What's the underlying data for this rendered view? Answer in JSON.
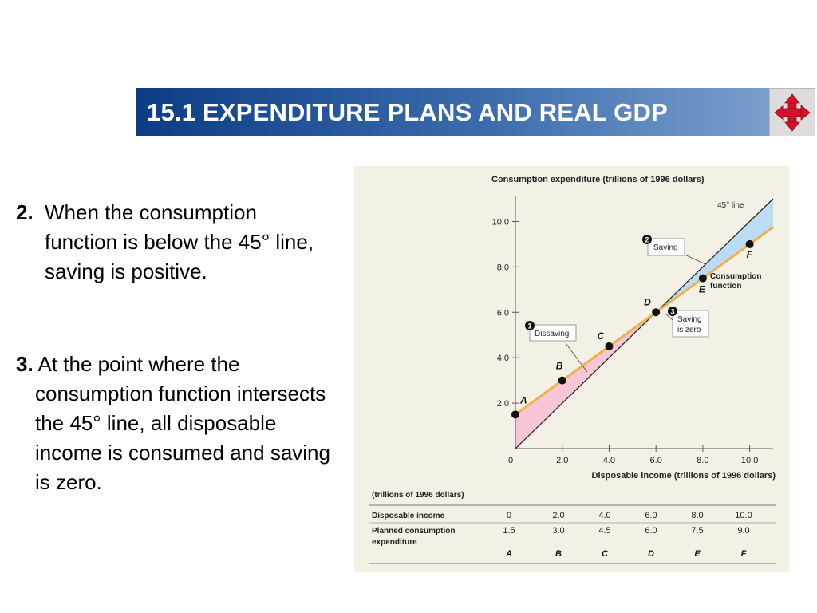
{
  "header": {
    "title": "15.1 EXPENDITURE PLANS AND REAL GDP",
    "nav_icon": "four-way-arrows-icon",
    "accent_color": "#0c3c84"
  },
  "bullets": [
    {
      "number": "2.",
      "text": "When the consumption function is below the 45° line, saving is positive."
    },
    {
      "number": "3.",
      "first_line": "At the point where the",
      "rest": "consumption function intersects the 45° line, all disposable income is consumed and saving is zero."
    }
  ],
  "chart_data": {
    "type": "line",
    "ylabel": "Consumption expenditure (trillions of 1996 dollars)",
    "xlabel": "Disposable income (trillions of 1996 dollars)",
    "xlim": [
      0,
      11.0
    ],
    "ylim": [
      0,
      11.0
    ],
    "x_ticks": [
      "2.0",
      "4.0",
      "6.0",
      "8.0",
      "10.0"
    ],
    "y_ticks": [
      "2.0",
      "4.0",
      "6.0",
      "8.0",
      "10.0"
    ],
    "origin_label": "0",
    "grid": false,
    "series": [
      {
        "name": "45° line",
        "color": "#1a1a1a",
        "x": [
          0,
          11.0
        ],
        "y": [
          0,
          11.0
        ]
      },
      {
        "name": "Consumption function",
        "color": "#f0b050",
        "x": [
          0,
          11.0
        ],
        "y": [
          1.5,
          9.75
        ]
      }
    ],
    "points": [
      {
        "label": "A",
        "x": 0,
        "y": 1.5
      },
      {
        "label": "B",
        "x": 2.0,
        "y": 3.0
      },
      {
        "label": "C",
        "x": 4.0,
        "y": 4.5
      },
      {
        "label": "D",
        "x": 6.0,
        "y": 6.0
      },
      {
        "label": "E",
        "x": 8.0,
        "y": 7.5
      },
      {
        "label": "F",
        "x": 10.0,
        "y": 9.0
      }
    ],
    "regions": {
      "dissaving_color": "#f6c6d6",
      "saving_color": "#bcdcf4"
    },
    "annotations": {
      "line45": "45° line",
      "consumption": [
        "Consumption",
        "function"
      ],
      "callout1": {
        "num": "1",
        "text": "Dissaving"
      },
      "callout2": {
        "num": "2",
        "text": "Saving"
      },
      "callout3": {
        "num": "3",
        "lines": [
          "Saving",
          "is zero"
        ]
      }
    },
    "table": {
      "unit_label": "(trillions of 1996 dollars)",
      "row1_label": "Disposable income",
      "row1_values": [
        "0",
        "2.0",
        "4.0",
        "6.0",
        "8.0",
        "10.0"
      ],
      "row2_label_line1": "Planned consumption",
      "row2_label_line2": "expenditure",
      "row2_values": [
        "1.5",
        "3.0",
        "4.5",
        "6.0",
        "7.5",
        "9.0"
      ],
      "row3_values": [
        "A",
        "B",
        "C",
        "D",
        "E",
        "F"
      ]
    }
  }
}
